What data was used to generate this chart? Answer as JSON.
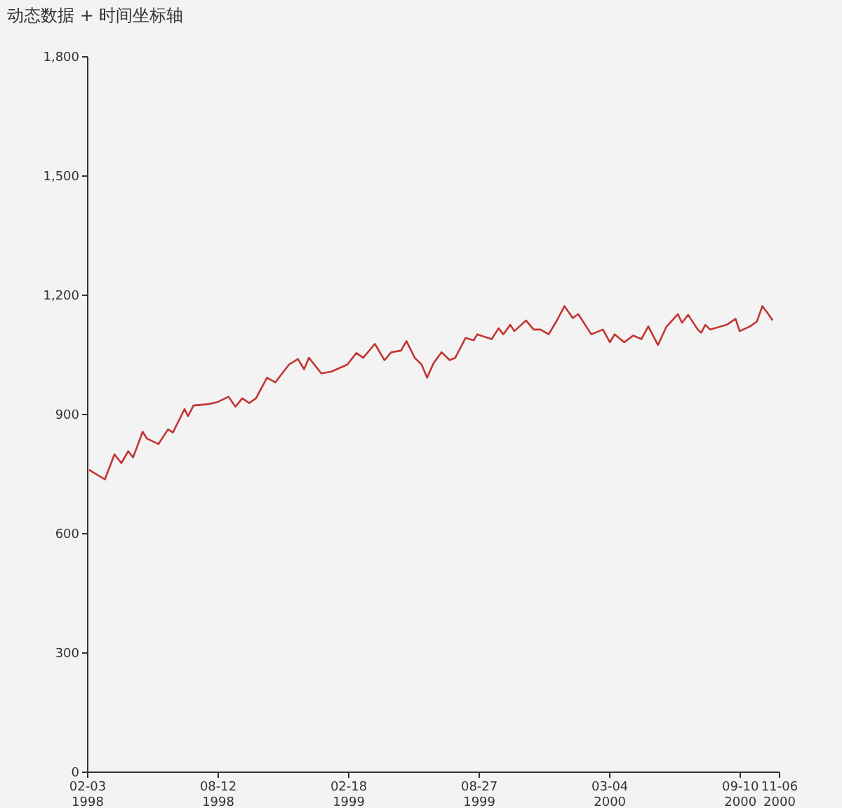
{
  "chart_data": {
    "type": "line",
    "title": "动态数据 + 时间坐标轴",
    "x": [
      "1998-02-06",
      "1998-03-01",
      "1998-03-15",
      "1998-03-25",
      "1998-04-04",
      "1998-04-11",
      "1998-04-25",
      "1998-05-01",
      "1998-05-18",
      "1998-06-01",
      "1998-06-08",
      "1998-06-25",
      "1998-06-30",
      "1998-07-08",
      "1998-07-28",
      "1998-08-11",
      "1998-08-28",
      "1998-09-07",
      "1998-09-17",
      "1998-09-27",
      "1998-10-07",
      "1998-10-23",
      "1998-11-04",
      "1998-11-24",
      "1998-12-07",
      "1998-12-16",
      "1998-12-23",
      "1999-01-10",
      "1999-01-24",
      "1999-02-17",
      "1999-03-02",
      "1999-03-12",
      "1999-03-29",
      "1999-04-12",
      "1999-04-22",
      "1999-05-06",
      "1999-05-14",
      "1999-05-26",
      "1999-06-05",
      "1999-06-13",
      "1999-06-22",
      "1999-07-04",
      "1999-07-16",
      "1999-07-24",
      "1999-08-08",
      "1999-08-20",
      "1999-08-25",
      "1999-09-15",
      "1999-09-25",
      "1999-10-02",
      "1999-10-12",
      "1999-10-18",
      "1999-11-04",
      "1999-11-15",
      "1999-11-25",
      "1999-12-07",
      "1999-12-18",
      "1999-12-30",
      "2000-01-11",
      "2000-01-19",
      "2000-02-07",
      "2000-02-24",
      "2000-03-05",
      "2000-03-12",
      "2000-03-26",
      "2000-04-08",
      "2000-04-20",
      "2000-04-30",
      "2000-05-14",
      "2000-05-26",
      "2000-06-12",
      "2000-06-18",
      "2000-06-27",
      "2000-07-11",
      "2000-07-16",
      "2000-07-22",
      "2000-07-29",
      "2000-08-22",
      "2000-09-04",
      "2000-09-10",
      "2000-09-25",
      "2000-10-05",
      "2000-10-13",
      "2000-10-20",
      "2000-10-28"
    ],
    "series": [
      {
        "color": "#c23531",
        "values": [
          759,
          735,
          798,
          776,
          806,
          790,
          855,
          838,
          824,
          861,
          853,
          912,
          894,
          921,
          924,
          929,
          943,
          918,
          939,
          927,
          939,
          991,
          979,
          1024,
          1038,
          1012,
          1041,
          1002,
          1006,
          1024,
          1053,
          1041,
          1076,
          1035,
          1055,
          1059,
          1083,
          1041,
          1024,
          991,
          1026,
          1055,
          1035,
          1041,
          1091,
          1085,
          1100,
          1088,
          1115,
          1100,
          1124,
          1108,
          1135,
          1112,
          1112,
          1100,
          1132,
          1171,
          1141,
          1151,
          1100,
          1112,
          1080,
          1100,
          1080,
          1097,
          1088,
          1120,
          1073,
          1118,
          1151,
          1129,
          1149,
          1112,
          1104,
          1124,
          1112,
          1124,
          1139,
          1108,
          1120,
          1132,
          1171,
          1155,
          1135
        ]
      }
    ],
    "xlim": [
      "1998-02-03",
      "2000-11-06"
    ],
    "xticks": [
      {
        "value": "1998-02-03",
        "label": "02-03 1998"
      },
      {
        "value": "1998-08-12",
        "label": "08-12 1998"
      },
      {
        "value": "1999-02-18",
        "label": "02-18 1999"
      },
      {
        "value": "1999-08-27",
        "label": "08-27 1999"
      },
      {
        "value": "2000-03-04",
        "label": "03-04 2000"
      },
      {
        "value": "2000-09-10",
        "label": "09-10 2000"
      },
      {
        "value": "2000-11-06",
        "label": "11-06 2000"
      }
    ],
    "ylim": [
      0,
      1800
    ],
    "yticks": [
      0,
      300,
      600,
      900,
      {
        "value": 1200,
        "label": "1,200"
      },
      {
        "value": 1500,
        "label": "1,500"
      },
      {
        "value": 1800,
        "label": "1,800"
      }
    ],
    "grid": false,
    "marker": "none",
    "line_style": "solid"
  }
}
